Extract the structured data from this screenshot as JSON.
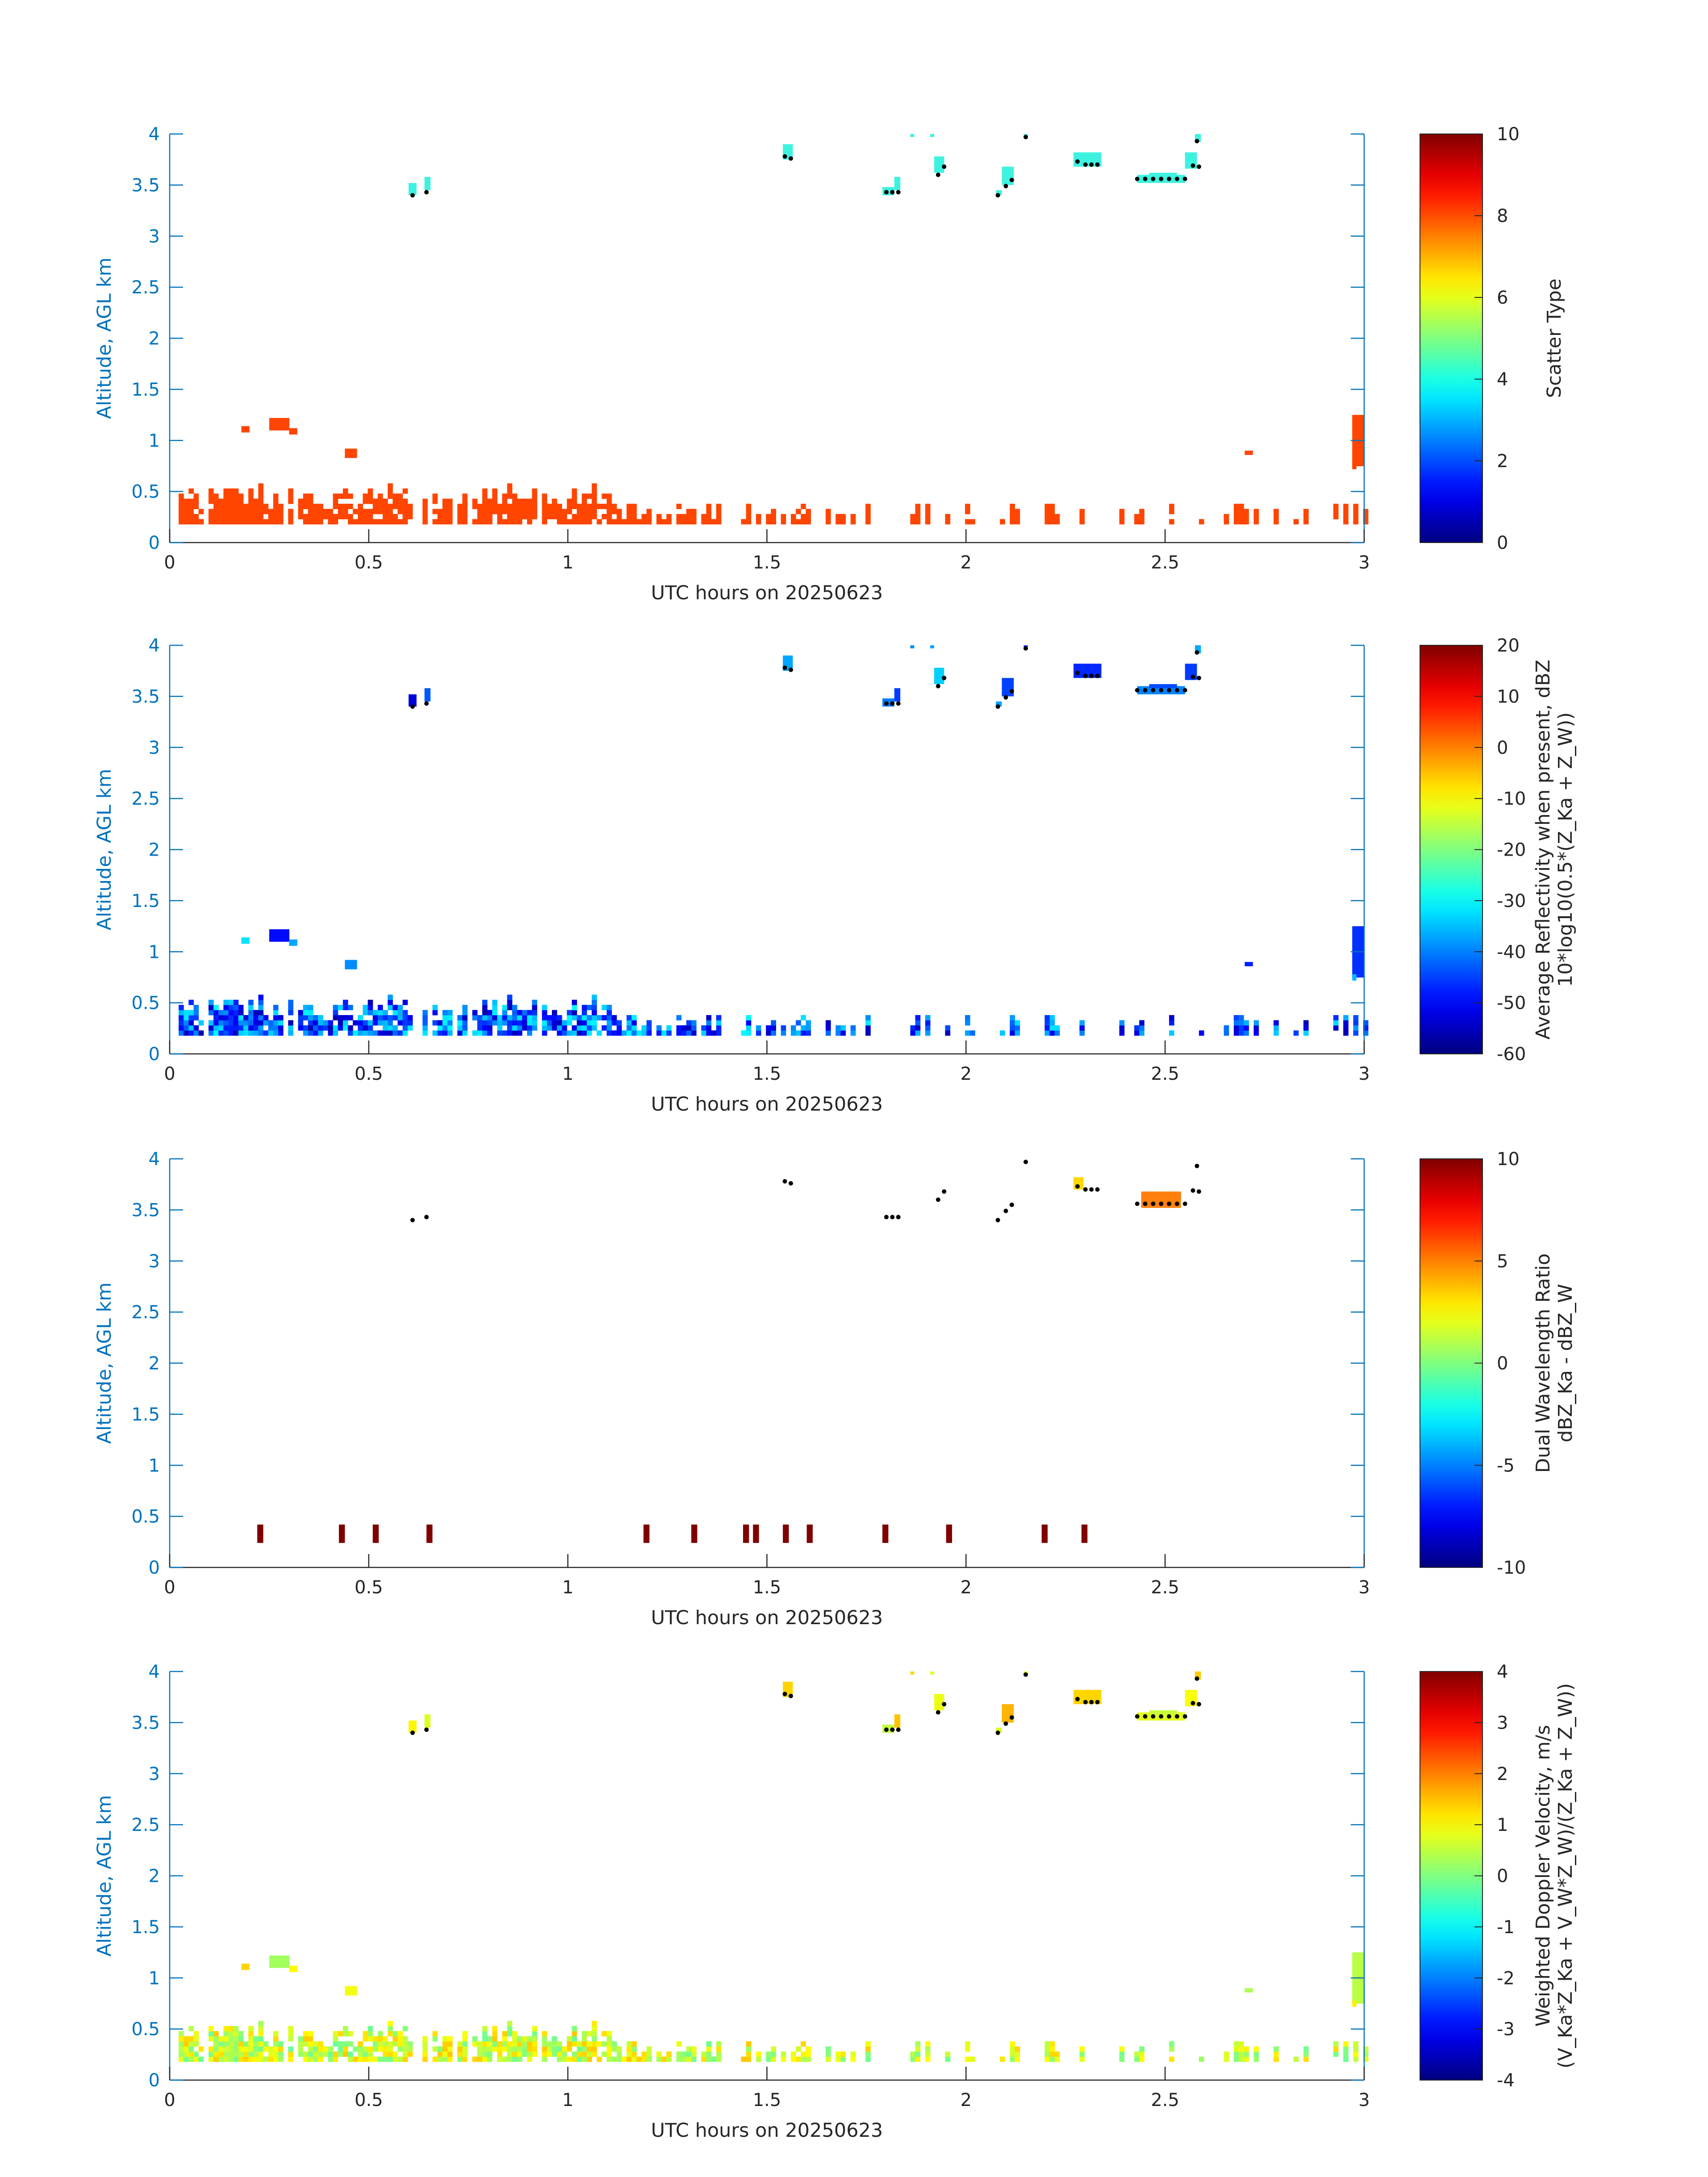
{
  "figure": {
    "time_origin_label": "UTC hours on 20250623"
  },
  "colors": {
    "axis_blue": "#0072bd",
    "dark_axis": "#262626",
    "boundary_layer": "#ff4500",
    "cloud_top": "#3ef2e0",
    "marker": "#000000",
    "colormap": "jet"
  },
  "chart_data": [
    {
      "id": "scatter",
      "type": "heatmap",
      "title": "",
      "xlabel": "UTC hours on 20250623",
      "ylabel": "Altitude, AGL km",
      "xlim": [
        0,
        3
      ],
      "ylim": [
        0,
        4
      ],
      "xticks": [
        "0",
        "0.5",
        "1",
        "1.5",
        "2",
        "2.5",
        "3"
      ],
      "yticks": [
        "0",
        "0.5",
        "1",
        "1.5",
        "2",
        "2.5",
        "3",
        "3.5",
        "4"
      ],
      "colorbar": {
        "label": "Scatter Type",
        "label_line2": "",
        "range": [
          0,
          10
        ],
        "ticks": [
          "0",
          "2",
          "4",
          "6",
          "8",
          "10"
        ]
      }
    },
    {
      "id": "reflectivity",
      "type": "heatmap",
      "title": "",
      "xlabel": "UTC hours on 20250623",
      "ylabel": "Altitude, AGL km",
      "xlim": [
        0,
        3
      ],
      "ylim": [
        0,
        4
      ],
      "xticks": [
        "0",
        "0.5",
        "1",
        "1.5",
        "2",
        "2.5",
        "3"
      ],
      "yticks": [
        "0",
        "0.5",
        "1",
        "1.5",
        "2",
        "2.5",
        "3",
        "3.5",
        "4"
      ],
      "colorbar": {
        "label": "Average Reflectivity when present, dBZ",
        "label_line2": "10*log10(0.5*(Z_Ka + Z_W))",
        "range": [
          -60,
          20
        ],
        "ticks": [
          "-60",
          "-50",
          "-40",
          "-30",
          "-20",
          "-10",
          "0",
          "10",
          "20"
        ]
      }
    },
    {
      "id": "dwr",
      "type": "heatmap",
      "title": "",
      "xlabel": "UTC hours on 20250623",
      "ylabel": "Altitude, AGL km",
      "xlim": [
        0,
        3
      ],
      "ylim": [
        0,
        4
      ],
      "xticks": [
        "0",
        "0.5",
        "1",
        "1.5",
        "2",
        "2.5",
        "3"
      ],
      "yticks": [
        "0",
        "0.5",
        "1",
        "1.5",
        "2",
        "2.5",
        "3",
        "3.5",
        "4"
      ],
      "colorbar": {
        "label": "Dual Wavelength Ratio",
        "label_line2": "dBZ_Ka - dBZ_W",
        "range": [
          -10,
          10
        ],
        "ticks": [
          "-10",
          "-5",
          "0",
          "5",
          "10"
        ]
      }
    },
    {
      "id": "velocity",
      "type": "heatmap",
      "title": "",
      "xlabel": "UTC hours on 20250623",
      "ylabel": "Altitude, AGL km",
      "xlim": [
        0,
        3
      ],
      "ylim": [
        0,
        4
      ],
      "xticks": [
        "0",
        "0.5",
        "1",
        "1.5",
        "2",
        "2.5",
        "3"
      ],
      "yticks": [
        "0",
        "0.5",
        "1",
        "1.5",
        "2",
        "2.5",
        "3",
        "3.5",
        "4"
      ],
      "colorbar": {
        "label": "Weighted Doppler Velocity, m/s",
        "label_line2": "(V_Ka*Z_Ka + V_W*Z_W)/(Z_Ka + Z_W))",
        "range": [
          -4,
          4
        ],
        "ticks": [
          "-4",
          "-3",
          "-2",
          "-1",
          "0",
          "1",
          "2",
          "3",
          "4"
        ]
      }
    }
  ],
  "cloud_top_markers": {
    "description_units": "hours, km",
    "points": [
      [
        0.61,
        3.4
      ],
      [
        0.645,
        3.43
      ],
      [
        1.545,
        3.78
      ],
      [
        1.56,
        3.76
      ],
      [
        1.8,
        3.43
      ],
      [
        1.815,
        3.43
      ],
      [
        1.83,
        3.43
      ],
      [
        1.93,
        3.6
      ],
      [
        1.945,
        3.68
      ],
      [
        2.08,
        3.4
      ],
      [
        2.1,
        3.49
      ],
      [
        2.115,
        3.55
      ],
      [
        2.15,
        3.97
      ],
      [
        2.28,
        3.73
      ],
      [
        2.3,
        3.7
      ],
      [
        2.315,
        3.7
      ],
      [
        2.33,
        3.7
      ],
      [
        2.43,
        3.56
      ],
      [
        2.45,
        3.56
      ],
      [
        2.47,
        3.56
      ],
      [
        2.49,
        3.56
      ],
      [
        2.51,
        3.56
      ],
      [
        2.53,
        3.56
      ],
      [
        2.55,
        3.56
      ],
      [
        2.57,
        3.69
      ],
      [
        2.585,
        3.68
      ],
      [
        2.58,
        3.93
      ]
    ]
  }
}
